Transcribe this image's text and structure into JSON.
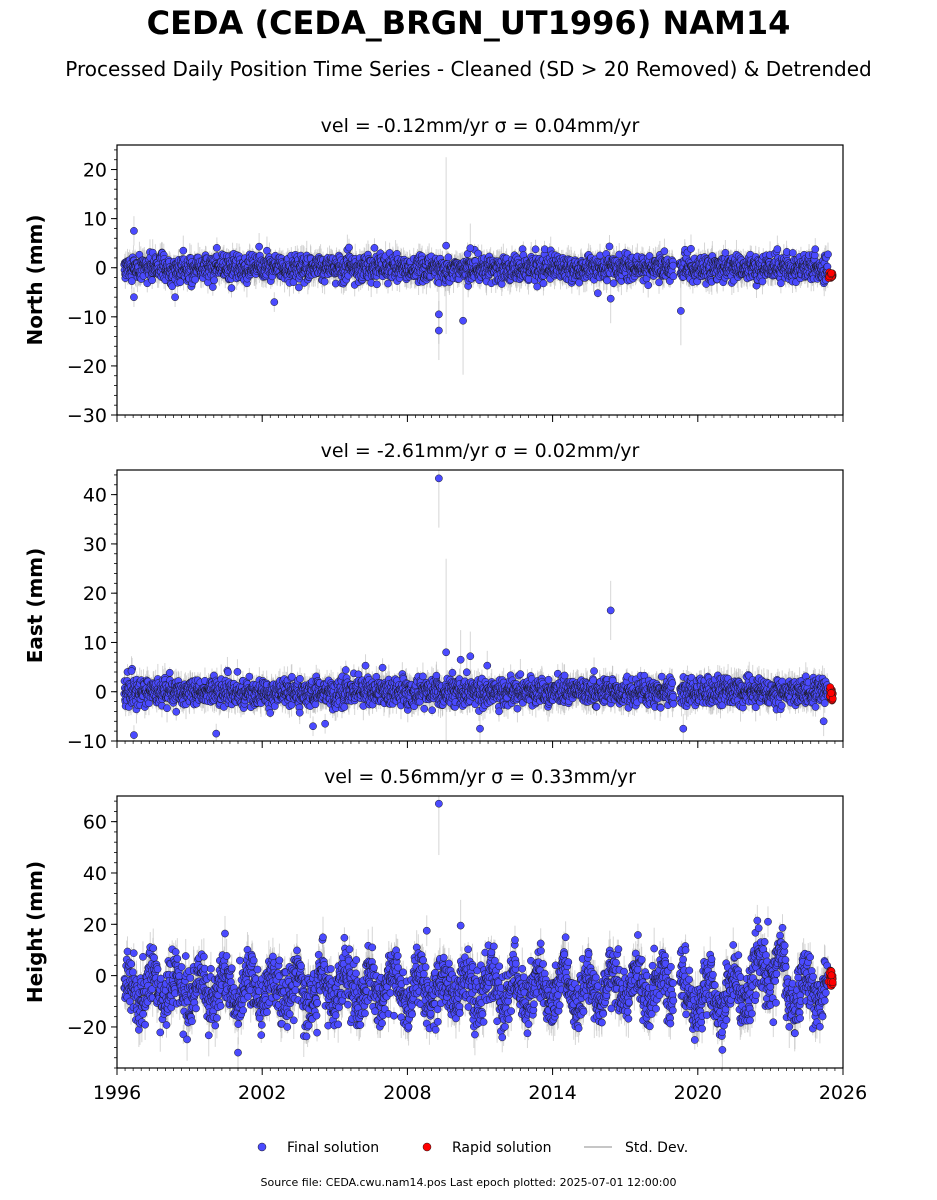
{
  "title": "CEDA (CEDA_BRGN_UT1996) NAM14",
  "subtitle": "Processed Daily Position Time Series - Cleaned (SD > 20 Removed) & Detrended",
  "footer": "Source file: CEDA.cwu.nam14.pos  Last epoch plotted: 2025-07-01 12:00:00",
  "colors": {
    "final": "#4a4aff",
    "rapid": "#ff0000",
    "stddev": "#b4b4b4",
    "marker_edge": "#1a1a1a"
  },
  "legend": {
    "placement": "bottom-center",
    "final_label": "Final solution",
    "rapid_label": "Rapid solution",
    "std_label": "Std. Dev."
  },
  "chart_data": [
    {
      "type": "scatter",
      "title": "vel = -0.12mm/yr   σ = 0.04mm/yr",
      "ylabel": "North (mm)",
      "xlim": [
        1996,
        2026
      ],
      "ylim": [
        -30,
        25
      ],
      "yticks": [
        -30,
        -20,
        -10,
        0,
        10,
        20
      ],
      "yticklabels": [
        "−30",
        "−20",
        "−10",
        "0",
        "10",
        "20"
      ],
      "xticks": [
        1996,
        2002,
        2008,
        2014,
        2020,
        2026
      ],
      "noise_sd": 1.3,
      "noise_err": 2.2,
      "rapid": {
        "range": [
          2025.4,
          2025.58
        ],
        "mean": -1.5,
        "spread": 0.8
      },
      "outliers": [
        {
          "x": 1996.7,
          "y": 7.5,
          "err": 3
        },
        {
          "x": 1996.7,
          "y": -6,
          "err": 2
        },
        {
          "x": 1998.4,
          "y": -6,
          "err": 2
        },
        {
          "x": 2002.5,
          "y": -7,
          "err": 2
        },
        {
          "x": 2009.3,
          "y": -9.5,
          "err": 6
        },
        {
          "x": 2009.3,
          "y": -12.8,
          "err": 6
        },
        {
          "x": 2009.6,
          "y": 4.5,
          "err": 18
        },
        {
          "x": 2010.3,
          "y": -10.8,
          "err": 11
        },
        {
          "x": 2010.6,
          "y": 4,
          "err": 5
        },
        {
          "x": 2016.4,
          "y": -6.3,
          "err": 5
        },
        {
          "x": 2019.3,
          "y": -8.8,
          "err": 7
        }
      ]
    },
    {
      "type": "scatter",
      "title": "vel = -2.61mm/yr   σ = 0.02mm/yr",
      "ylabel": "East (mm)",
      "xlim": [
        1996,
        2026
      ],
      "ylim": [
        -10,
        45
      ],
      "yticks": [
        -10,
        0,
        10,
        20,
        30,
        40
      ],
      "yticklabels": [
        "−10",
        "0",
        "10",
        "20",
        "30",
        "40"
      ],
      "xticks": [
        1996,
        2002,
        2008,
        2014,
        2020,
        2026
      ],
      "noise_sd": 1.4,
      "noise_err": 2.2,
      "rapid": {
        "range": [
          2025.4,
          2025.58
        ],
        "mean": -0.5,
        "spread": 1.2
      },
      "outliers": [
        {
          "x": 1996.7,
          "y": -8.8,
          "err": 2
        },
        {
          "x": 1996.6,
          "y": 4.2,
          "err": 3
        },
        {
          "x": 2000.1,
          "y": -8.5,
          "err": 2
        },
        {
          "x": 2004.1,
          "y": -7,
          "err": 2
        },
        {
          "x": 2004.6,
          "y": -6.5,
          "err": 2
        },
        {
          "x": 2009.3,
          "y": 43.3,
          "err": 10
        },
        {
          "x": 2009.6,
          "y": 8,
          "err": 19
        },
        {
          "x": 2010.2,
          "y": 6.5,
          "err": 6
        },
        {
          "x": 2010.6,
          "y": 7.2,
          "err": 5
        },
        {
          "x": 2011.0,
          "y": -7.5,
          "err": 3
        },
        {
          "x": 2011.3,
          "y": 5.3,
          "err": 3
        },
        {
          "x": 2016.4,
          "y": 16.5,
          "err": 6
        },
        {
          "x": 2019.4,
          "y": -7.5,
          "err": 3
        },
        {
          "x": 2025.2,
          "y": -6,
          "err": 3
        }
      ]
    },
    {
      "type": "scatter",
      "title": "vel = 0.56mm/yr   σ = 0.33mm/yr",
      "ylabel": "Height (mm)",
      "xlim": [
        1996,
        2026
      ],
      "ylim": [
        -36,
        70
      ],
      "yticks": [
        -20,
        0,
        20,
        40,
        60
      ],
      "yticklabels": [
        "−20",
        "0",
        "20",
        "40",
        "60"
      ],
      "xticks": [
        1996,
        2002,
        2008,
        2014,
        2020,
        2026
      ],
      "xticklabels": [
        "1996",
        "2002",
        "2008",
        "2014",
        "2020",
        "2026"
      ],
      "noise_sd": 5.5,
      "noise_err": 6,
      "rapid": {
        "range": [
          2025.4,
          2025.58
        ],
        "mean": -1,
        "spread": 3.5
      },
      "outliers": [
        {
          "x": 2009.3,
          "y": 67,
          "err": 20
        },
        {
          "x": 2010.2,
          "y": 19.5,
          "err": 10
        },
        {
          "x": 2001.0,
          "y": -30,
          "err": 6
        },
        {
          "x": 2008.8,
          "y": 17.5,
          "err": 6
        },
        {
          "x": 2022.9,
          "y": 21,
          "err": 6
        }
      ]
    }
  ]
}
